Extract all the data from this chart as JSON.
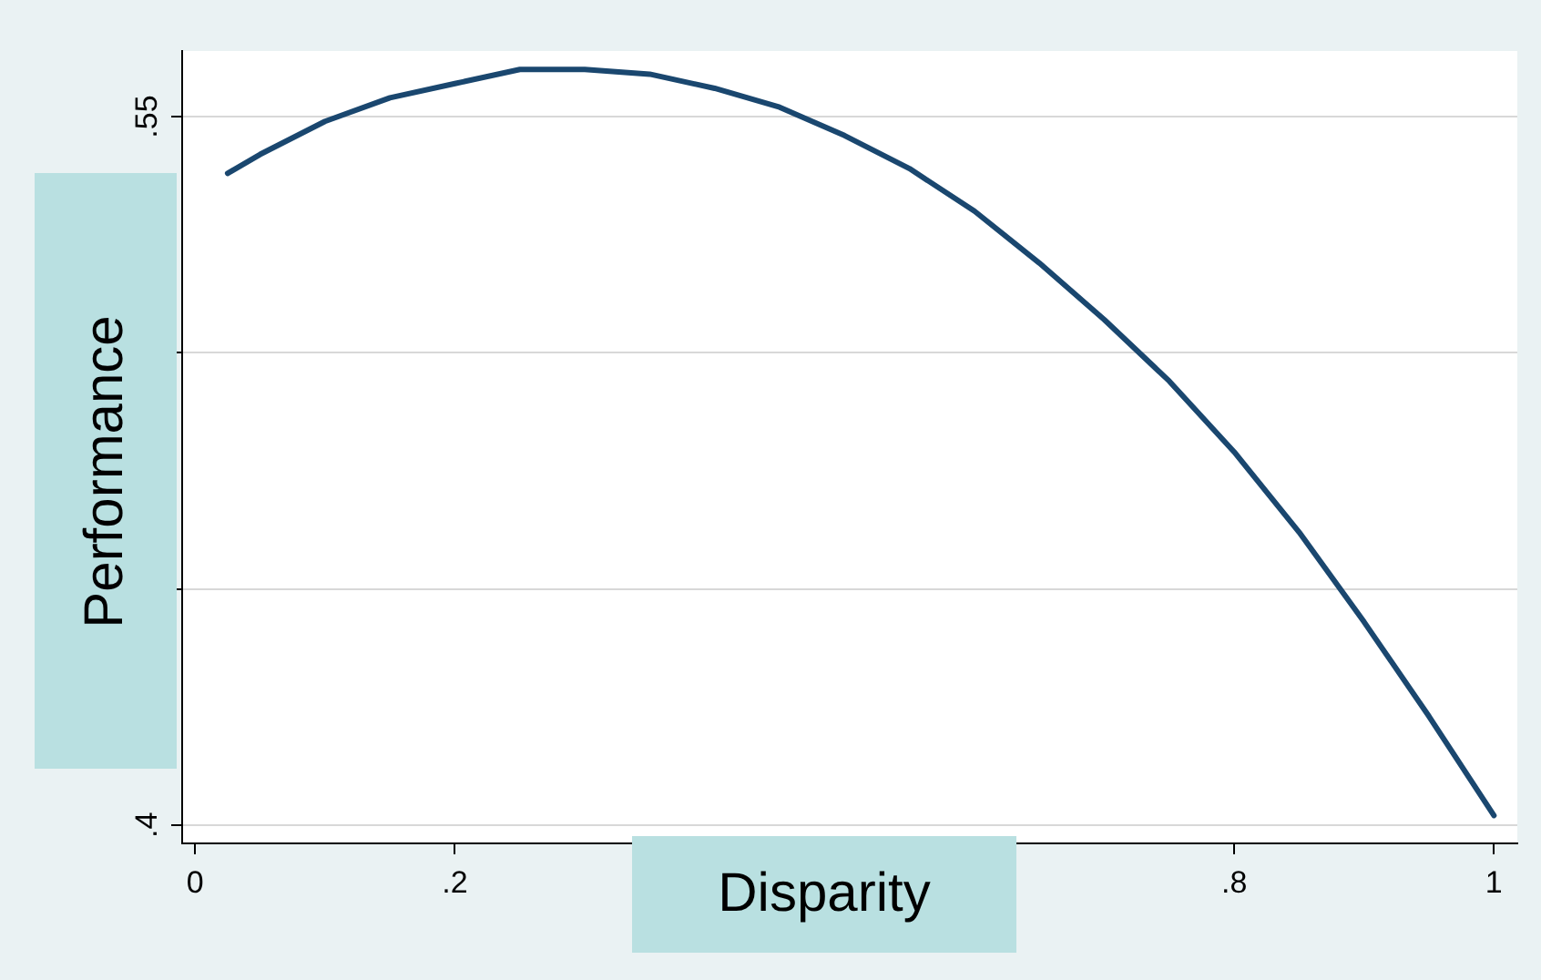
{
  "chart_data": {
    "type": "line",
    "xlabel": "Disparity",
    "ylabel": "Performance",
    "x": [
      0.025,
      0.05,
      0.1,
      0.15,
      0.2,
      0.25,
      0.3,
      0.35,
      0.4,
      0.45,
      0.5,
      0.55,
      0.6,
      0.65,
      0.7,
      0.75,
      0.8,
      0.85,
      0.9,
      0.95,
      1
    ],
    "series": [
      {
        "color": "#1a476f",
        "values": [
          0.538,
          0.542,
          0.549,
          0.554,
          0.557,
          0.56,
          0.56,
          0.559,
          0.556,
          0.552,
          0.546,
          0.539,
          0.53,
          0.519,
          0.507,
          0.494,
          0.479,
          0.462,
          0.443,
          0.423,
          0.402
        ]
      }
    ],
    "xlim": [
      -0.01,
      1.018
    ],
    "ylim": [
      0.3961,
      0.5639
    ],
    "xticks": [
      0,
      {
        "value": 0.2,
        "label": ".2"
      },
      {
        "value": 0.4,
        "label": null
      },
      {
        "value": 0.6,
        "label": null
      },
      {
        "value": 0.8,
        "label": ".8"
      },
      1
    ],
    "yticks": [
      {
        "value": 0.4,
        "label": ".4"
      },
      {
        "value": 0.45,
        "label": null
      },
      {
        "value": 0.5,
        "label": null
      },
      {
        "value": 0.55,
        "label": ".55"
      }
    ],
    "grid": "y",
    "legend": false,
    "marker": "none",
    "line_style": "solid"
  }
}
